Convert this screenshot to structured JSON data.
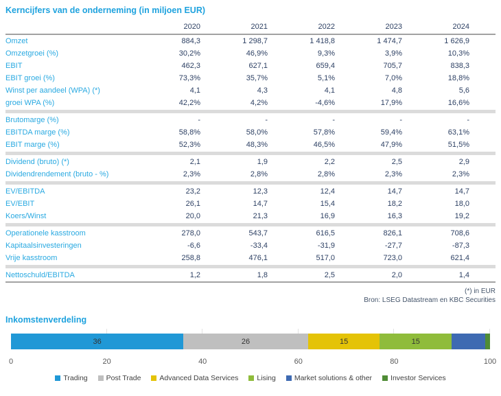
{
  "accent_color": "#1EA2DE",
  "value_color": "#2E4164",
  "separator_color": "#DBDBDB",
  "rule_color": "#A2A2A2",
  "chart_data": [
    {
      "type": "table",
      "title": "Kerncijfers van de onderneming (in miljoen EUR)",
      "columns": [
        "2020",
        "2021",
        "2022",
        "2023",
        "2024"
      ],
      "groups": [
        {
          "rows": [
            {
              "label": "Omzet",
              "values": [
                "884,3",
                "1 298,7",
                "1 418,8",
                "1 474,7",
                "1 626,9"
              ]
            },
            {
              "label": "Omzetgroei (%)",
              "values": [
                "30,2%",
                "46,9%",
                "9,3%",
                "3,9%",
                "10,3%"
              ]
            },
            {
              "label": "EBIT",
              "values": [
                "462,3",
                "627,1",
                "659,4",
                "705,7",
                "838,3"
              ]
            },
            {
              "label": "EBIT groei (%)",
              "values": [
                "73,3%",
                "35,7%",
                "5,1%",
                "7,0%",
                "18,8%"
              ]
            },
            {
              "label": "Winst per aandeel (WPA) (*)",
              "values": [
                "4,1",
                "4,3",
                "4,1",
                "4,8",
                "5,6"
              ]
            },
            {
              "label": "groei WPA (%)",
              "values": [
                "42,2%",
                "4,2%",
                "-4,6%",
                "17,9%",
                "16,6%"
              ]
            }
          ]
        },
        {
          "rows": [
            {
              "label": "Brutomarge (%)",
              "values": [
                "-",
                "-",
                "-",
                "-",
                "-"
              ]
            },
            {
              "label": "EBITDA marge (%)",
              "values": [
                "58,8%",
                "58,0%",
                "57,8%",
                "59,4%",
                "63,1%"
              ]
            },
            {
              "label": "EBIT marge (%)",
              "values": [
                "52,3%",
                "48,3%",
                "46,5%",
                "47,9%",
                "51,5%"
              ]
            }
          ]
        },
        {
          "rows": [
            {
              "label": "Dividend (bruto) (*)",
              "values": [
                "2,1",
                "1,9",
                "2,2",
                "2,5",
                "2,9"
              ]
            },
            {
              "label": "Dividendrendement (bruto - %)",
              "values": [
                "2,3%",
                "2,8%",
                "2,8%",
                "2,3%",
                "2,3%"
              ]
            }
          ]
        },
        {
          "rows": [
            {
              "label": "EV/EBITDA",
              "values": [
                "23,2",
                "12,3",
                "12,4",
                "14,7",
                "14,7"
              ]
            },
            {
              "label": "EV/EBIT",
              "values": [
                "26,1",
                "14,7",
                "15,4",
                "18,2",
                "18,0"
              ]
            },
            {
              "label": "Koers/Winst",
              "values": [
                "20,0",
                "21,3",
                "16,9",
                "16,3",
                "19,2"
              ]
            }
          ]
        },
        {
          "rows": [
            {
              "label": "Operationele kasstroom",
              "values": [
                "278,0",
                "543,7",
                "616,5",
                "826,1",
                "708,6"
              ]
            },
            {
              "label": "Kapitaalsinvesteringen",
              "values": [
                "-6,6",
                "-33,4",
                "-31,9",
                "-27,7",
                "-87,3"
              ]
            },
            {
              "label": "Vrije kasstroom",
              "values": [
                "258,8",
                "476,1",
                "517,0",
                "723,0",
                "621,4"
              ]
            }
          ]
        },
        {
          "rows": [
            {
              "label": "Nettoschuld/EBITDA",
              "values": [
                "1,2",
                "1,8",
                "2,5",
                "2,0",
                "1,4"
              ]
            }
          ]
        }
      ],
      "footnote": "(*) in EUR",
      "source": "Bron: LSEG Datastream en KBC Securities"
    },
    {
      "type": "bar",
      "orientation": "horizontal-stacked",
      "title": "Inkomstenverdeling",
      "series": [
        {
          "name": "Trading",
          "value": 36,
          "color": "#2098D6",
          "label_shown": true
        },
        {
          "name": "Post Trade",
          "value": 26,
          "color": "#BFBFBF",
          "label_shown": true
        },
        {
          "name": "Advanced Data Services",
          "value": 15,
          "color": "#E4C307",
          "label_shown": true
        },
        {
          "name": "Lising",
          "value": 15,
          "color": "#8FBC3B",
          "label_shown": true
        },
        {
          "name": "Market solutions & other",
          "value": 7,
          "color": "#3E6AB2",
          "label_shown": false
        },
        {
          "name": "Investor Services",
          "value": 1,
          "color": "#4F8C36",
          "label_shown": false
        }
      ],
      "xlim": [
        0,
        100
      ],
      "xticks": [
        0,
        20,
        40,
        60,
        80,
        100
      ],
      "grid": true,
      "legend_position": "bottom"
    }
  ]
}
